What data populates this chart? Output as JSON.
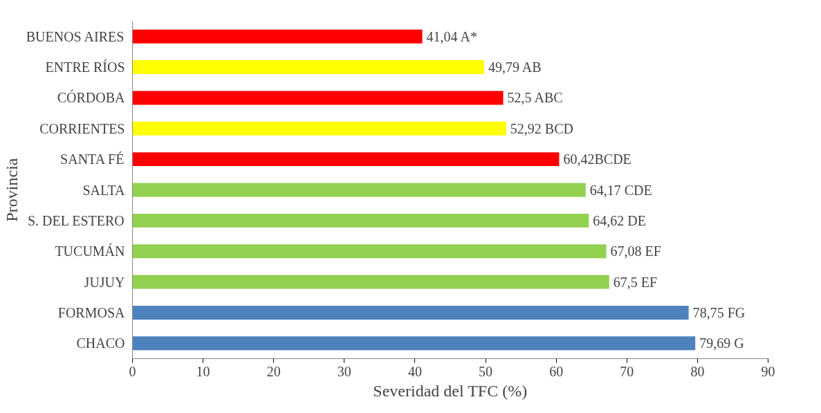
{
  "chart_data": {
    "type": "bar",
    "orientation": "horizontal",
    "xlabel": "Severidad del TFC (%)",
    "ylabel": "Provincia",
    "categories": [
      "BUENOS AIRES",
      "ENTRE RÍOS",
      "CÓRDOBA",
      "CORRIENTES",
      "SANTA FÉ",
      "SALTA",
      "S. DEL ESTERO",
      "TUCUMÁN",
      "JUJUY",
      "FORMOSA",
      "CHACO"
    ],
    "values": [
      41.04,
      49.79,
      52.5,
      52.92,
      60.42,
      64.17,
      64.62,
      67.08,
      67.5,
      78.75,
      79.69
    ],
    "colors": [
      "#ff0000",
      "#ffff00",
      "#ff0000",
      "#ffff00",
      "#ff0000",
      "#92d050",
      "#92d050",
      "#92d050",
      "#92d050",
      "#4f81bd",
      "#4f81bd"
    ],
    "value_labels": [
      "41,04 A*",
      "49,79 AB",
      "52,5 ABC",
      "52,92 BCD",
      "60,42BCDE",
      "64,17 CDE",
      "64,62 DE",
      "67,08 EF",
      "67,5 EF",
      "78,75 FG",
      "79,69 G"
    ],
    "xlim": [
      0,
      90
    ],
    "xticks": [
      0,
      10,
      20,
      30,
      40,
      50,
      60,
      70,
      80,
      90
    ],
    "grid": false
  }
}
